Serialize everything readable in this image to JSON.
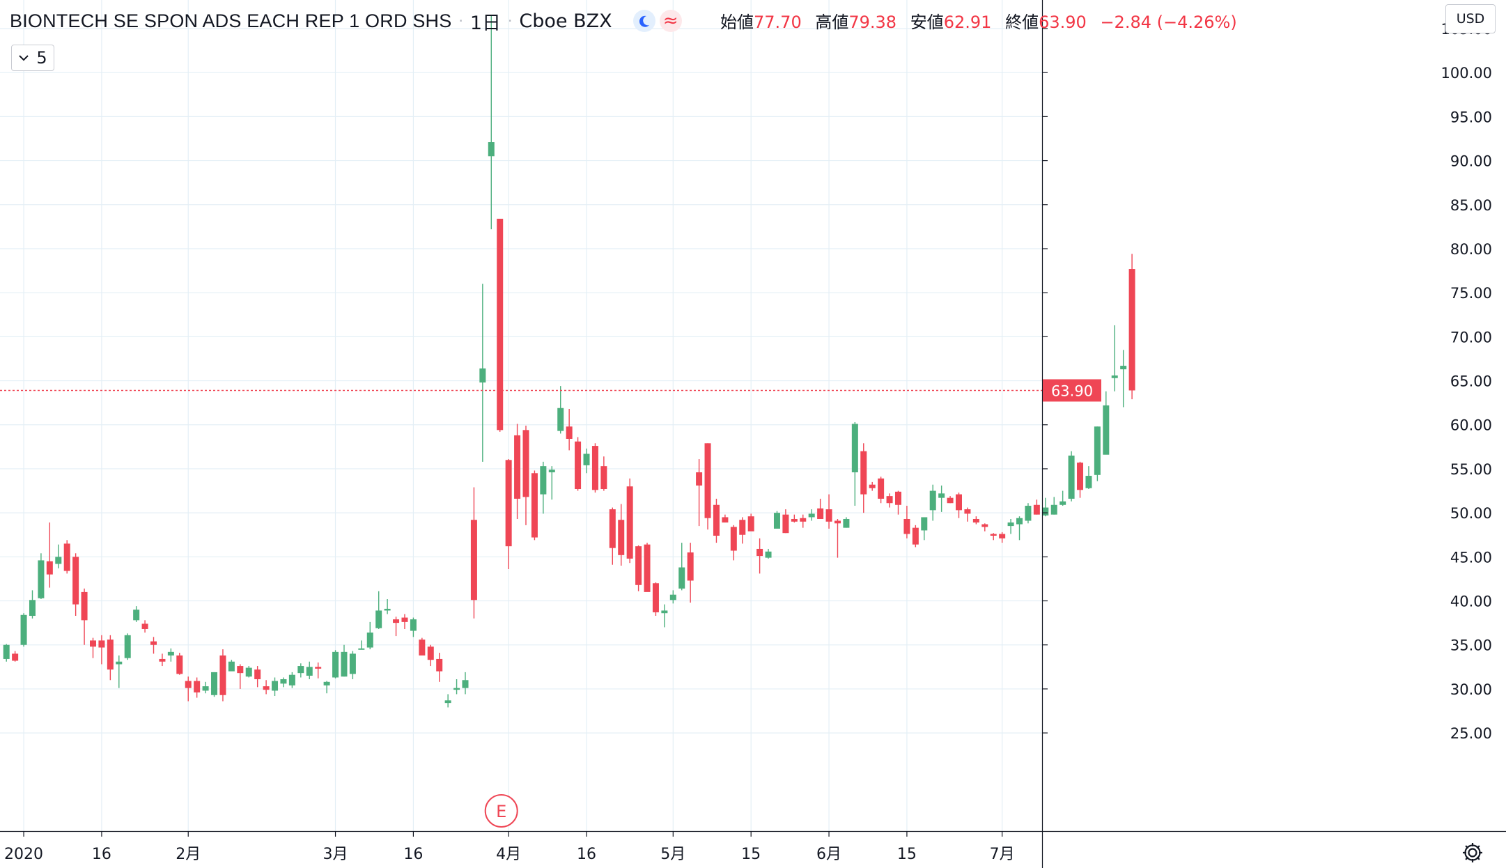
{
  "header": {
    "symbol": "BIONTECH SE SPON ADS EACH REP 1 ORD SHS",
    "interval": "1日",
    "exchange": "Cboe BZX",
    "ohlc": {
      "open_label": "始値",
      "open": "77.70",
      "high_label": "高値",
      "high": "79.38",
      "low_label": "安値",
      "low": "62.91",
      "close_label": "終値",
      "close": "63.90",
      "change": "−2.84 (−4.26%)"
    }
  },
  "interval_selector": {
    "value": "5"
  },
  "currency": "USD",
  "icons": {
    "market_status": "moon-icon",
    "chart_mode": "wave-icon",
    "settings": "gear-icon",
    "earnings": "earnings-marker-icon",
    "collapse": "chevron-down-icon"
  },
  "colors": {
    "up": "#4caf7d",
    "down": "#ef4655",
    "last_price_line": "#ef4655",
    "grid": "#e4eff6"
  },
  "chart_data": {
    "type": "candlestick",
    "title": "",
    "ylabel": "USD",
    "ylim": [
      23.0,
      106.5
    ],
    "y_ticks": [
      "105.00",
      "100.00",
      "95.00",
      "90.00",
      "85.00",
      "80.00",
      "75.00",
      "70.00",
      "65.00",
      "60.00",
      "55.00",
      "50.00",
      "45.00",
      "40.00",
      "35.00",
      "30.00",
      "25.00"
    ],
    "x_ticks": [
      {
        "label": "2020",
        "bar": 2
      },
      {
        "label": "16",
        "bar": 11
      },
      {
        "label": "2月",
        "bar": 21
      },
      {
        "label": "3月",
        "bar": 38
      },
      {
        "label": "16",
        "bar": 47
      },
      {
        "label": "4月",
        "bar": 58
      },
      {
        "label": "16",
        "bar": 67
      },
      {
        "label": "5月",
        "bar": 77
      },
      {
        "label": "15",
        "bar": 86
      },
      {
        "label": "6月",
        "bar": 95
      },
      {
        "label": "15",
        "bar": 104
      },
      {
        "label": "7月",
        "bar": 115
      }
    ],
    "last_price": "63.90",
    "earnings_marker": {
      "label": "E",
      "bar": 57
    },
    "candles": [
      [
        33.4,
        35.1,
        33.1,
        35.0
      ],
      [
        34.0,
        34.3,
        33.1,
        33.2
      ],
      [
        35.0,
        38.6,
        34.8,
        38.4
      ],
      [
        38.3,
        41.2,
        38.0,
        40.1
      ],
      [
        40.3,
        45.4,
        40.2,
        44.6
      ],
      [
        44.5,
        48.9,
        41.5,
        43.0
      ],
      [
        44.2,
        46.4,
        43.7,
        45.0
      ],
      [
        46.5,
        46.9,
        43.1,
        43.4
      ],
      [
        45.0,
        45.4,
        38.3,
        39.6
      ],
      [
        41.0,
        41.4,
        35.0,
        37.8
      ],
      [
        35.5,
        35.8,
        33.5,
        34.8
      ],
      [
        35.5,
        36.1,
        32.8,
        34.7
      ],
      [
        35.6,
        36.1,
        31.0,
        32.2
      ],
      [
        32.8,
        33.8,
        30.1,
        33.1
      ],
      [
        33.5,
        36.3,
        33.3,
        36.1
      ],
      [
        37.8,
        39.4,
        37.6,
        39.0
      ],
      [
        37.4,
        37.8,
        36.4,
        36.8
      ],
      [
        35.4,
        35.9,
        34.0,
        35.0
      ],
      [
        33.4,
        34.0,
        32.6,
        33.1
      ],
      [
        33.8,
        34.6,
        33.1,
        34.2
      ],
      [
        33.8,
        34.1,
        31.6,
        31.7
      ],
      [
        30.9,
        31.4,
        28.6,
        30.1
      ],
      [
        30.9,
        31.3,
        29.0,
        29.6
      ],
      [
        29.8,
        30.8,
        29.5,
        30.3
      ],
      [
        29.3,
        31.9,
        29.1,
        31.9
      ],
      [
        33.8,
        34.5,
        28.6,
        29.3
      ],
      [
        32.0,
        33.3,
        32.1,
        33.1
      ],
      [
        32.6,
        32.8,
        30.0,
        31.8
      ],
      [
        31.4,
        32.6,
        31.3,
        32.4
      ],
      [
        32.2,
        32.6,
        30.2,
        31.1
      ],
      [
        30.3,
        31.0,
        29.4,
        29.9
      ],
      [
        29.8,
        31.3,
        29.2,
        30.9
      ],
      [
        30.6,
        31.3,
        30.2,
        31.1
      ],
      [
        30.4,
        31.9,
        30.1,
        31.6
      ],
      [
        31.8,
        32.9,
        31.3,
        32.6
      ],
      [
        31.5,
        33.1,
        31.1,
        32.5
      ],
      [
        32.5,
        33.0,
        31.2,
        32.3
      ],
      [
        30.4,
        30.9,
        29.5,
        30.8
      ],
      [
        31.3,
        34.4,
        31.2,
        34.2
      ],
      [
        31.4,
        35.0,
        31.4,
        34.2
      ],
      [
        31.7,
        34.3,
        31.1,
        34.0
      ],
      [
        34.6,
        35.5,
        34.5,
        34.6
      ],
      [
        34.7,
        37.6,
        34.5,
        36.4
      ],
      [
        36.9,
        41.1,
        36.8,
        38.9
      ],
      [
        38.9,
        40.2,
        38.5,
        39.1
      ],
      [
        37.9,
        38.2,
        36.0,
        37.5
      ],
      [
        38.1,
        38.5,
        36.8,
        37.6
      ],
      [
        36.6,
        38.1,
        35.9,
        37.9
      ],
      [
        35.6,
        35.8,
        34.0,
        33.8
      ],
      [
        34.8,
        35.0,
        32.6,
        33.3
      ],
      [
        33.4,
        34.1,
        30.8,
        32.0
      ],
      [
        28.4,
        29.4,
        27.9,
        28.7
      ],
      [
        29.9,
        31.1,
        29.4,
        30.1
      ],
      [
        30.1,
        31.9,
        29.4,
        31.0
      ],
      [
        49.2,
        52.9,
        38.0,
        40.1
      ],
      [
        64.8,
        76.0,
        55.8,
        66.4
      ],
      [
        90.5,
        106.5,
        82.2,
        92.1
      ],
      [
        83.4,
        83.4,
        59.2,
        59.4
      ],
      [
        56.0,
        56.1,
        43.6,
        46.2
      ],
      [
        58.8,
        60.1,
        49.3,
        51.6
      ],
      [
        59.4,
        59.9,
        48.6,
        51.8
      ],
      [
        54.5,
        54.8,
        46.9,
        47.2
      ],
      [
        52.1,
        55.8,
        49.9,
        55.3
      ],
      [
        54.6,
        55.3,
        51.5,
        54.9
      ],
      [
        59.3,
        64.4,
        59.0,
        61.9
      ],
      [
        59.8,
        61.8,
        57.1,
        58.4
      ],
      [
        58.1,
        58.6,
        52.5,
        52.7
      ],
      [
        55.4,
        57.3,
        54.5,
        56.7
      ],
      [
        57.6,
        57.9,
        52.3,
        52.6
      ],
      [
        55.3,
        56.4,
        52.5,
        52.7
      ],
      [
        50.4,
        50.6,
        44.1,
        46.0
      ],
      [
        49.2,
        51.0,
        44.0,
        45.2
      ],
      [
        53.0,
        53.9,
        44.3,
        44.8
      ],
      [
        46.2,
        46.3,
        41.1,
        41.8
      ],
      [
        46.4,
        46.6,
        41.4,
        41.0
      ],
      [
        42.0,
        42.1,
        38.3,
        38.7
      ],
      [
        38.6,
        39.6,
        37.0,
        38.9
      ],
      [
        40.1,
        41.2,
        39.7,
        40.7
      ],
      [
        41.4,
        46.6,
        41.2,
        43.8
      ],
      [
        45.5,
        46.6,
        39.8,
        42.3
      ],
      [
        54.6,
        56.1,
        48.5,
        53.1
      ],
      [
        57.9,
        57.9,
        48.1,
        49.4
      ],
      [
        50.9,
        51.6,
        46.6,
        47.4
      ],
      [
        49.5,
        49.8,
        48.9,
        48.9
      ],
      [
        48.4,
        48.6,
        44.6,
        45.7
      ],
      [
        49.2,
        49.5,
        46.5,
        47.5
      ],
      [
        49.6,
        49.9,
        48.2,
        47.9
      ],
      [
        45.9,
        47.1,
        43.1,
        45.1
      ],
      [
        44.9,
        45.9,
        44.8,
        45.6
      ],
      [
        48.2,
        50.2,
        48.4,
        50.0
      ],
      [
        49.8,
        50.4,
        47.7,
        47.7
      ],
      [
        49.3,
        49.8,
        48.9,
        49.0
      ],
      [
        49.4,
        49.8,
        48.3,
        49.0
      ],
      [
        49.5,
        50.4,
        49.1,
        49.9
      ],
      [
        50.5,
        51.6,
        49.4,
        49.3
      ],
      [
        50.4,
        52.1,
        48.2,
        49.0
      ],
      [
        49.1,
        49.3,
        44.9,
        48.8
      ],
      [
        48.3,
        49.5,
        48.3,
        49.3
      ],
      [
        54.6,
        60.3,
        50.8,
        60.1
      ],
      [
        57.0,
        57.9,
        50.0,
        52.1
      ],
      [
        53.2,
        53.5,
        52.5,
        52.8
      ],
      [
        53.9,
        54.1,
        51.1,
        51.6
      ],
      [
        51.9,
        52.2,
        50.6,
        51.1
      ],
      [
        52.4,
        52.5,
        49.8,
        50.9
      ],
      [
        49.3,
        50.8,
        47.1,
        47.6
      ],
      [
        48.3,
        48.6,
        46.1,
        46.4
      ],
      [
        48.0,
        49.3,
        46.9,
        49.5
      ],
      [
        50.3,
        53.2,
        49.1,
        52.5
      ],
      [
        51.7,
        53.1,
        50.1,
        52.2
      ],
      [
        51.7,
        51.9,
        51.1,
        51.1
      ],
      [
        52.1,
        52.3,
        49.4,
        50.3
      ],
      [
        50.4,
        50.6,
        49.0,
        49.9
      ],
      [
        49.3,
        49.6,
        48.7,
        48.9
      ],
      [
        48.7,
        48.8,
        47.9,
        48.4
      ],
      [
        47.6,
        47.7,
        46.9,
        47.4
      ],
      [
        47.6,
        47.8,
        46.6,
        47.1
      ],
      [
        48.5,
        49.3,
        47.6,
        48.9
      ],
      [
        48.7,
        49.6,
        46.9,
        49.4
      ],
      [
        49.1,
        51.1,
        48.8,
        50.8
      ],
      [
        50.9,
        51.5,
        49.8,
        49.8
      ],
      [
        49.7,
        51.7,
        49.6,
        50.6
      ],
      [
        49.8,
        51.8,
        49.8,
        50.9
      ],
      [
        50.9,
        52.5,
        50.8,
        51.3
      ],
      [
        51.6,
        57.0,
        51.3,
        56.5
      ],
      [
        55.7,
        55.8,
        51.7,
        52.6
      ],
      [
        52.8,
        55.3,
        52.7,
        54.2
      ],
      [
        54.3,
        59.8,
        53.6,
        59.8
      ],
      [
        56.6,
        63.8,
        56.8,
        62.2
      ],
      [
        65.3,
        71.3,
        63.8,
        65.6
      ],
      [
        66.3,
        68.5,
        62.0,
        66.7
      ],
      [
        77.7,
        79.4,
        62.9,
        63.9
      ]
    ]
  }
}
